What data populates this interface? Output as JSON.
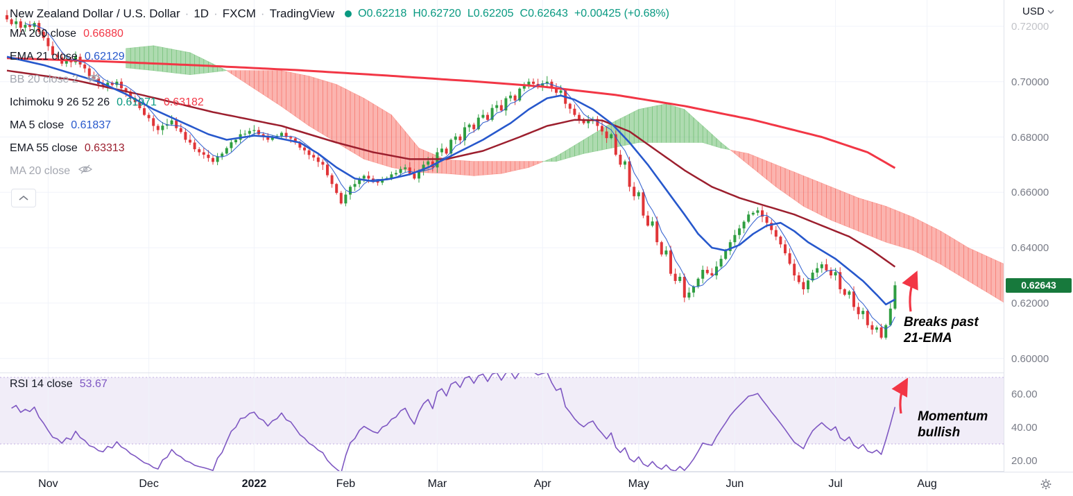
{
  "header": {
    "title": {
      "symbol": "New Zealand Dollar / U.S. Dollar",
      "sep": "·",
      "timeframe": "1D",
      "exchange": "FXCM",
      "platform": "TradingView"
    },
    "ohlc": [
      "O0.62218",
      "H0.62720",
      "L0.62205",
      "C0.62643",
      "+0.00425 (+0.68%)"
    ],
    "currency": "USD"
  },
  "legend": {
    "indicators": [
      {
        "label": "MA 200 close",
        "value": "0.66880"
      },
      {
        "label": "EMA 21 close",
        "value": "0.62129"
      },
      {
        "label": "BB 20 close 2",
        "hidden": true
      },
      {
        "label": "Ichimoku 9 26 52 26",
        "value": "0.61971",
        "value2": "0.63182"
      },
      {
        "label": "MA 5 close",
        "value": "0.61837"
      },
      {
        "label": "EMA 55 close",
        "value": "0.63313"
      },
      {
        "label": "MA 20 close",
        "hidden": true
      }
    ],
    "rsi": {
      "label": "RSI 14 close",
      "value": "53.67"
    }
  },
  "annotations": [
    {
      "line1": "Breaks past",
      "line2": "21-EMA"
    },
    {
      "line1": "Momentum",
      "line2": "bullish"
    }
  ],
  "colors": {
    "up": "#2f9e41",
    "down": "#e03538",
    "grid": "#f0f3fa",
    "axis_border": "#e0e3eb",
    "axis_text": "#787b86",
    "ma200": "#f23645",
    "ema21": "#2758cc",
    "ema55": "#9c1f2e",
    "ichi_a": "#089981",
    "ichi_b": "#f23645",
    "cloud_up": "rgba(76,175,80,0.45)",
    "cloud_down": "rgba(244,67,54,0.40)",
    "rsi": "#7e57c2",
    "rsi_band": "rgba(126,87,194,0.11)",
    "rsi_band_line": "rgba(126,87,194,0.45)",
    "accent": "#089981",
    "badge_bg": "#17793c",
    "arrow": "#f23645"
  },
  "chart_data": {
    "type": "candlestick",
    "title": "New Zealand Dollar / U.S. Dollar, 1D, FXCM",
    "closes": [
      0.7225,
      0.7208,
      0.7218,
      0.7195,
      0.7205,
      0.7198,
      0.7212,
      0.718,
      0.7158,
      0.7128,
      0.7096,
      0.7088,
      0.7065,
      0.7078,
      0.707,
      0.709,
      0.7062,
      0.7048,
      0.702,
      0.7012,
      0.6992,
      0.6985,
      0.6996,
      0.6988,
      0.7,
      0.6976,
      0.6964,
      0.694,
      0.6926,
      0.6904,
      0.688,
      0.6868,
      0.684,
      0.6825,
      0.6841,
      0.6846,
      0.686,
      0.6832,
      0.6818,
      0.679,
      0.678,
      0.6756,
      0.6745,
      0.6736,
      0.6724,
      0.671,
      0.673,
      0.674,
      0.676,
      0.6781,
      0.679,
      0.681,
      0.6812,
      0.6822,
      0.6825,
      0.681,
      0.6805,
      0.679,
      0.68,
      0.6804,
      0.6815,
      0.68,
      0.6795,
      0.678,
      0.6762,
      0.6752,
      0.6735,
      0.6726,
      0.671,
      0.67,
      0.6662,
      0.663,
      0.6598,
      0.656,
      0.6592,
      0.662,
      0.663,
      0.665,
      0.666,
      0.665,
      0.664,
      0.6635,
      0.6648,
      0.6652,
      0.6665,
      0.667,
      0.6684,
      0.669,
      0.6668,
      0.665,
      0.6678,
      0.67,
      0.6712,
      0.669,
      0.6745,
      0.6758,
      0.674,
      0.679,
      0.6802,
      0.6788,
      0.6835,
      0.6845,
      0.6828,
      0.687,
      0.688,
      0.6862,
      0.6905,
      0.6915,
      0.6896,
      0.694,
      0.695,
      0.6932,
      0.6975,
      0.6986,
      0.7,
      0.6992,
      0.6985,
      0.6994,
      0.7,
      0.6978,
      0.696,
      0.6968,
      0.692,
      0.6902,
      0.688,
      0.6862,
      0.685,
      0.686,
      0.6865,
      0.684,
      0.682,
      0.6796,
      0.681,
      0.6736,
      0.67,
      0.6712,
      0.662,
      0.6586,
      0.66,
      0.6516,
      0.648,
      0.6495,
      0.642,
      0.6376,
      0.639,
      0.6306,
      0.628,
      0.6295,
      0.622,
      0.6238,
      0.626,
      0.6288,
      0.632,
      0.6308,
      0.63,
      0.6332,
      0.636,
      0.6388,
      0.642,
      0.6446,
      0.647,
      0.6494,
      0.652,
      0.6526,
      0.6535,
      0.6512,
      0.649,
      0.6464,
      0.644,
      0.6412,
      0.638,
      0.6342,
      0.63,
      0.6276,
      0.625,
      0.6282,
      0.631,
      0.6326,
      0.634,
      0.6318,
      0.63,
      0.6312,
      0.625,
      0.623,
      0.6242,
      0.6186,
      0.616,
      0.6172,
      0.612,
      0.6104,
      0.6112,
      0.6075,
      0.612,
      0.618,
      0.62643
    ],
    "derived": {
      "ma5_period": 5,
      "rsi_period": 14
    },
    "series": {
      "ma200": [
        [
          0,
          0.7085
        ],
        [
          23,
          0.7072
        ],
        [
          43,
          0.7058
        ],
        [
          63,
          0.7042
        ],
        [
          83,
          0.7022
        ],
        [
          103,
          0.7
        ],
        [
          117,
          0.6982
        ],
        [
          133,
          0.6952
        ],
        [
          148,
          0.6912
        ],
        [
          163,
          0.6862
        ],
        [
          178,
          0.68
        ],
        [
          188,
          0.6745
        ],
        [
          194,
          0.6688
        ]
      ],
      "ema55": [
        [
          0,
          0.704
        ],
        [
          15,
          0.7005
        ],
        [
          30,
          0.695
        ],
        [
          45,
          0.689
        ],
        [
          60,
          0.684
        ],
        [
          72,
          0.678
        ],
        [
          80,
          0.6745
        ],
        [
          88,
          0.672
        ],
        [
          96,
          0.672
        ],
        [
          104,
          0.675
        ],
        [
          112,
          0.68
        ],
        [
          118,
          0.684
        ],
        [
          124,
          0.6862
        ],
        [
          130,
          0.686
        ],
        [
          136,
          0.682
        ],
        [
          142,
          0.675
        ],
        [
          148,
          0.668
        ],
        [
          154,
          0.662
        ],
        [
          160,
          0.658
        ],
        [
          166,
          0.655
        ],
        [
          172,
          0.652
        ],
        [
          178,
          0.648
        ],
        [
          184,
          0.644
        ],
        [
          189,
          0.639
        ],
        [
          194,
          0.6331
        ]
      ],
      "ema21": [
        [
          0,
          0.709
        ],
        [
          8,
          0.706
        ],
        [
          14,
          0.703
        ],
        [
          20,
          0.7
        ],
        [
          26,
          0.6955
        ],
        [
          32,
          0.69
        ],
        [
          38,
          0.6855
        ],
        [
          44,
          0.681
        ],
        [
          48,
          0.679
        ],
        [
          54,
          0.6805
        ],
        [
          58,
          0.68
        ],
        [
          64,
          0.678
        ],
        [
          68,
          0.674
        ],
        [
          72,
          0.669
        ],
        [
          76,
          0.665
        ],
        [
          80,
          0.664
        ],
        [
          84,
          0.665
        ],
        [
          88,
          0.6665
        ],
        [
          92,
          0.669
        ],
        [
          98,
          0.674
        ],
        [
          104,
          0.679
        ],
        [
          110,
          0.685
        ],
        [
          114,
          0.69
        ],
        [
          118,
          0.694
        ],
        [
          121,
          0.695
        ],
        [
          124,
          0.6935
        ],
        [
          128,
          0.69
        ],
        [
          132,
          0.685
        ],
        [
          136,
          0.678
        ],
        [
          140,
          0.67
        ],
        [
          144,
          0.661
        ],
        [
          148,
          0.652
        ],
        [
          151,
          0.645
        ],
        [
          154,
          0.64
        ],
        [
          157,
          0.639
        ],
        [
          160,
          0.641
        ],
        [
          163,
          0.645
        ],
        [
          166,
          0.648
        ],
        [
          169,
          0.649
        ],
        [
          172,
          0.646
        ],
        [
          175,
          0.642
        ],
        [
          178,
          0.639
        ],
        [
          181,
          0.636
        ],
        [
          184,
          0.632
        ],
        [
          187,
          0.628
        ],
        [
          190,
          0.623
        ],
        [
          192,
          0.6195
        ],
        [
          194,
          0.6213
        ]
      ]
    },
    "ichimoku_cloud": {
      "span_a": [
        [
          26,
          0.712
        ],
        [
          32,
          0.713
        ],
        [
          40,
          0.7105
        ],
        [
          48,
          0.704
        ],
        [
          54,
          0.6975
        ],
        [
          60,
          0.691
        ],
        [
          66,
          0.684
        ],
        [
          72,
          0.678
        ],
        [
          78,
          0.672
        ],
        [
          84,
          0.669
        ],
        [
          90,
          0.6672
        ],
        [
          96,
          0.6668
        ],
        [
          102,
          0.666
        ],
        [
          108,
          0.6668
        ],
        [
          114,
          0.669
        ],
        [
          120,
          0.673
        ],
        [
          126,
          0.679
        ],
        [
          132,
          0.685
        ],
        [
          138,
          0.69
        ],
        [
          144,
          0.692
        ],
        [
          148,
          0.69
        ],
        [
          152,
          0.684
        ],
        [
          156,
          0.678
        ],
        [
          162,
          0.67
        ],
        [
          168,
          0.662
        ],
        [
          174,
          0.655
        ],
        [
          180,
          0.65
        ],
        [
          186,
          0.646
        ],
        [
          192,
          0.642
        ],
        [
          198,
          0.639
        ],
        [
          204,
          0.634
        ],
        [
          210,
          0.628
        ],
        [
          218,
          0.62
        ]
      ],
      "span_b": [
        [
          26,
          0.705
        ],
        [
          32,
          0.704
        ],
        [
          40,
          0.7025
        ],
        [
          48,
          0.704
        ],
        [
          54,
          0.704
        ],
        [
          60,
          0.704
        ],
        [
          66,
          0.702
        ],
        [
          72,
          0.699
        ],
        [
          78,
          0.694
        ],
        [
          84,
          0.688
        ],
        [
          90,
          0.676
        ],
        [
          96,
          0.6718
        ],
        [
          102,
          0.6712
        ],
        [
          108,
          0.6712
        ],
        [
          114,
          0.6712
        ],
        [
          120,
          0.6712
        ],
        [
          126,
          0.674
        ],
        [
          132,
          0.676
        ],
        [
          138,
          0.678
        ],
        [
          144,
          0.678
        ],
        [
          148,
          0.678
        ],
        [
          152,
          0.678
        ],
        [
          156,
          0.676
        ],
        [
          162,
          0.674
        ],
        [
          168,
          0.67
        ],
        [
          174,
          0.666
        ],
        [
          180,
          0.662
        ],
        [
          186,
          0.658
        ],
        [
          192,
          0.655
        ],
        [
          198,
          0.651
        ],
        [
          204,
          0.646
        ],
        [
          210,
          0.64
        ],
        [
          218,
          0.634
        ]
      ]
    },
    "price_axis": {
      "ticks": [
        {
          "label": "0.72000",
          "value": 0.72,
          "faded": true
        },
        {
          "label": "0.70000",
          "value": 0.7
        },
        {
          "label": "0.68000",
          "value": 0.68
        },
        {
          "label": "0.66000",
          "value": 0.66
        },
        {
          "label": "0.64000",
          "value": 0.64
        },
        {
          "label": "0.62000",
          "value": 0.62
        },
        {
          "label": "0.60000",
          "value": 0.6
        }
      ]
    },
    "time_axis": {
      "months": [
        {
          "label": "Nov",
          "i": 9
        },
        {
          "label": "Dec",
          "i": 31
        },
        {
          "label": "2022",
          "i": 54,
          "year": true
        },
        {
          "label": "Feb",
          "i": 74
        },
        {
          "label": "Mar",
          "i": 94
        },
        {
          "label": "Apr",
          "i": 117
        },
        {
          "label": "May",
          "i": 138
        },
        {
          "label": "Jun",
          "i": 159
        },
        {
          "label": "Jul",
          "i": 181
        },
        {
          "label": "Aug",
          "i": 201
        }
      ]
    },
    "rsi_axis": {
      "ticks": [
        {
          "label": "60.00",
          "value": 60
        },
        {
          "label": "40.00",
          "value": 40
        },
        {
          "label": "20.00",
          "value": 20
        }
      ],
      "band": [
        30,
        70
      ]
    },
    "last_price_label": {
      "label": "0.62643",
      "value": 0.62643
    }
  }
}
